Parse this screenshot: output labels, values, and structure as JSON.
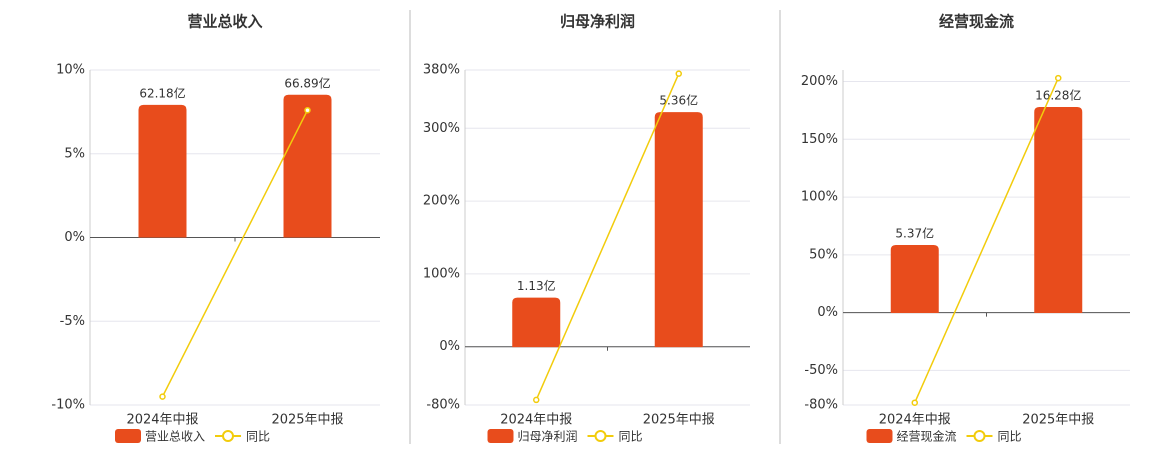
{
  "chart_data": [
    {
      "type": "bar",
      "title": "营业总收入",
      "categories": [
        "2024年中报",
        "2025年中报"
      ],
      "series": [
        {
          "name": "营业总收入",
          "type": "bar",
          "axis": "y2",
          "color": "#e84c1c",
          "values": [
            62.18,
            66.89
          ],
          "value_labels": [
            "62.18亿",
            "66.89亿"
          ]
        },
        {
          "name": "同比",
          "type": "line",
          "color": "#f2cc0c",
          "values": [
            -9.5,
            7.6
          ]
        }
      ],
      "ylim": [
        -10,
        10
      ],
      "yticks": [
        {
          "value": -10,
          "label": "-10%"
        },
        {
          "value": -5,
          "label": "-5%"
        },
        {
          "value": 0,
          "label": "0%"
        },
        {
          "value": 5,
          "label": "5%"
        },
        {
          "value": 10,
          "label": "10%"
        }
      ],
      "y2lim": [
        -78.5,
        78.5
      ],
      "grid": true
    },
    {
      "type": "bar",
      "title": "归母净利润",
      "categories": [
        "2024年中报",
        "2025年中报"
      ],
      "series": [
        {
          "name": "归母净利润",
          "type": "bar",
          "axis": "y2",
          "color": "#e84c1c",
          "values": [
            1.13,
            5.36
          ],
          "value_labels": [
            "1.13亿",
            "5.36亿"
          ]
        },
        {
          "name": "同比",
          "type": "line",
          "color": "#f2cc0c",
          "values": [
            -73,
            375
          ]
        }
      ],
      "ylim": [
        -80,
        380
      ],
      "yticks": [
        {
          "value": -80,
          "label": "-80%"
        },
        {
          "value": 0,
          "label": "0%"
        },
        {
          "value": 100,
          "label": "100%"
        },
        {
          "value": 200,
          "label": "200%"
        },
        {
          "value": 300,
          "label": "300%"
        },
        {
          "value": 380,
          "label": "380%"
        }
      ],
      "y2lim": [
        -1.32,
        6.32
      ],
      "grid": true
    },
    {
      "type": "bar",
      "title": "经营现金流",
      "categories": [
        "2024年中报",
        "2025年中报"
      ],
      "series": [
        {
          "name": "经营现金流",
          "type": "bar",
          "axis": "y2",
          "color": "#e84c1c",
          "values": [
            5.37,
            16.28
          ],
          "value_labels": [
            "5.37亿",
            "16.28亿"
          ]
        },
        {
          "name": "同比",
          "type": "line",
          "color": "#f2cc0c",
          "values": [
            -78,
            203
          ]
        }
      ],
      "ylim": [
        -80,
        210
      ],
      "yticks": [
        {
          "value": -80,
          "label": "-80%"
        },
        {
          "value": -50,
          "label": "-50%"
        },
        {
          "value": 0,
          "label": "0%"
        },
        {
          "value": 50,
          "label": "50%"
        },
        {
          "value": 100,
          "label": "100%"
        },
        {
          "value": 150,
          "label": "150%"
        },
        {
          "value": 200,
          "label": "200%"
        }
      ],
      "y2lim": [
        -7.27,
        19.2
      ],
      "grid": true
    }
  ]
}
